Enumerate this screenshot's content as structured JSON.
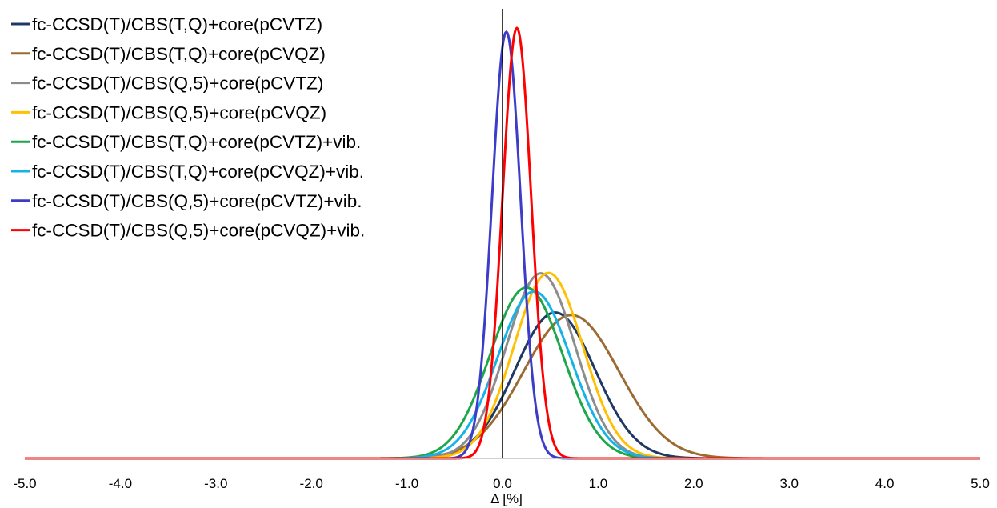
{
  "chart_data": {
    "type": "line",
    "title": "",
    "xlabel": "Δ [%]",
    "ylabel": "",
    "xlim": [
      -5.0,
      5.0
    ],
    "ylim": [
      0,
      1.0
    ],
    "xticks": [
      "-5.0",
      "-4.0",
      "-3.0",
      "-2.0",
      "-1.0",
      "0.0",
      "1.0",
      "2.0",
      "3.0",
      "4.0",
      "5.0"
    ],
    "grid": false,
    "legend_position": "top-left",
    "curve_model": "normal distribution (mean, sd in %; peak = relative height)",
    "series": [
      {
        "name": "fc-CCSD(T)/CBS(T,Q)+core(pCVTZ)",
        "color": "#1f3864",
        "mean": 0.55,
        "sd": 0.42,
        "peak": 0.339
      },
      {
        "name": "fc-CCSD(T)/CBS(T,Q)+core(pCVQZ)",
        "color": "#9c6b33",
        "mean": 0.72,
        "sd": 0.5,
        "peak": 0.333
      },
      {
        "name": "fc-CCSD(T)/CBS(Q,5)+core(pCVTZ)",
        "color": "#8c8c8c",
        "mean": 0.4,
        "sd": 0.36,
        "peak": 0.43
      },
      {
        "name": "fc-CCSD(T)/CBS(Q,5)+core(pCVQZ)",
        "color": "#ffc000",
        "mean": 0.48,
        "sd": 0.36,
        "peak": 0.431
      },
      {
        "name": "fc-CCSD(T)/CBS(T,Q)+core(pCVTZ)+vib.",
        "color": "#1ea64b",
        "mean": 0.25,
        "sd": 0.38,
        "peak": 0.397
      },
      {
        "name": "fc-CCSD(T)/CBS(T,Q)+core(pCVQZ)+vib.",
        "color": "#16b3e8",
        "mean": 0.33,
        "sd": 0.38,
        "peak": 0.388
      },
      {
        "name": "fc-CCSD(T)/CBS(Q,5)+core(pCVTZ)+vib.",
        "color": "#3c3cc8",
        "mean": 0.04,
        "sd": 0.15,
        "peak": 0.991
      },
      {
        "name": "fc-CCSD(T)/CBS(Q,5)+core(pCVQZ)+vib.",
        "color": "#ff0000",
        "mean": 0.15,
        "sd": 0.15,
        "peak": 1.0
      }
    ]
  }
}
